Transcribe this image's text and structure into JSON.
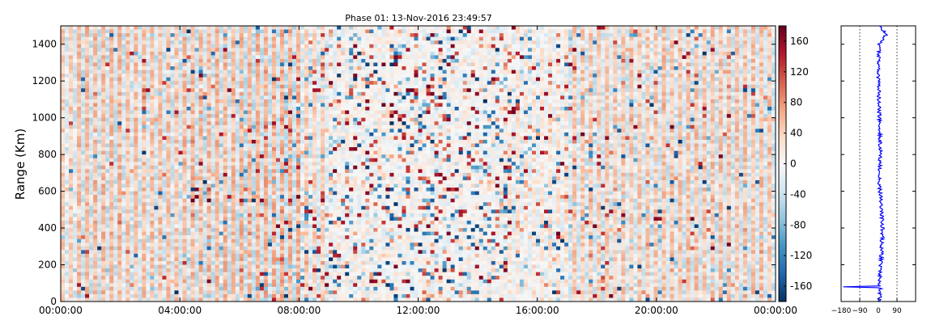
{
  "chart_data": [
    {
      "type": "heatmap",
      "title": "Phase 01: 13-Nov-2016 23:49:57",
      "xlabel": "",
      "ylabel": "Range (Km)",
      "x_ticks": [
        "00:00:00",
        "04:00:00",
        "08:00:00",
        "12:00:00",
        "16:00:00",
        "20:00:00",
        "00:00:00"
      ],
      "x_range_hours": [
        0,
        24
      ],
      "y_ticks": [
        0,
        200,
        400,
        600,
        800,
        1000,
        1200,
        1400
      ],
      "ylim": [
        0,
        1500
      ],
      "colorbar": {
        "ticks": [
          -160,
          -120,
          -80,
          -40,
          0,
          40,
          80,
          120,
          160
        ],
        "range": [
          -180,
          180
        ],
        "colormap": "RdBu_r",
        "colors": [
          "#053061",
          "#2166ac",
          "#4393c3",
          "#92c5de",
          "#d1e5f0",
          "#f7f7f7",
          "#fddbc7",
          "#f4a582",
          "#d6604d",
          "#b2182b",
          "#67001f"
        ]
      },
      "grid": false,
      "columns": [
        {
          "start": 0.0,
          "end": 0.5,
          "phase": 40,
          "noise": 0.1
        },
        {
          "start": 0.5,
          "end": 2.0,
          "phase": 55,
          "noise": 0.12
        },
        {
          "start": 2.0,
          "end": 4.0,
          "phase": 50,
          "noise": 0.18
        },
        {
          "start": 4.0,
          "end": 6.0,
          "phase": 55,
          "noise": 0.2
        },
        {
          "start": 6.0,
          "end": 8.0,
          "phase": 60,
          "noise": 0.4
        },
        {
          "start": 8.0,
          "end": 9.0,
          "phase": 40,
          "noise": 0.45
        },
        {
          "start": 9.0,
          "end": 11.0,
          "phase": 10,
          "noise": 0.75
        },
        {
          "start": 11.0,
          "end": 13.0,
          "phase": 0,
          "noise": 0.9
        },
        {
          "start": 13.0,
          "end": 15.0,
          "phase": 5,
          "noise": 0.8
        },
        {
          "start": 15.0,
          "end": 17.0,
          "phase": 20,
          "noise": 0.55
        },
        {
          "start": 17.0,
          "end": 20.0,
          "phase": 45,
          "noise": 0.3
        },
        {
          "start": 20.0,
          "end": 22.0,
          "phase": 50,
          "noise": 0.22
        },
        {
          "start": 22.0,
          "end": 24.0,
          "phase": 50,
          "noise": 0.2
        }
      ]
    },
    {
      "type": "line",
      "title": "",
      "x_ticks": [
        -180,
        -90,
        0,
        90
      ],
      "xlim": [
        -180,
        180
      ],
      "ylim": [
        0,
        1500
      ],
      "reference_lines": [
        -90,
        90
      ],
      "color": "#0000ff",
      "profile": [
        {
          "range": 0,
          "phase": 5
        },
        {
          "range": 80,
          "phase": 10
        },
        {
          "range": 81,
          "phase": -170
        },
        {
          "range": 84,
          "phase": 5
        },
        {
          "range": 200,
          "phase": 12
        },
        {
          "range": 400,
          "phase": 20
        },
        {
          "range": 500,
          "phase": 15
        },
        {
          "range": 600,
          "phase": 8
        },
        {
          "range": 700,
          "phase": 5
        },
        {
          "range": 800,
          "phase": 10
        },
        {
          "range": 1000,
          "phase": 5
        },
        {
          "range": 1200,
          "phase": 0
        },
        {
          "range": 1400,
          "phase": 5
        },
        {
          "range": 1450,
          "phase": 35
        },
        {
          "range": 1500,
          "phase": 10
        }
      ]
    }
  ]
}
